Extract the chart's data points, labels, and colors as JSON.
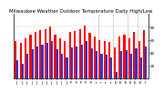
{
  "title": "Milwaukee Weather Outdoor Temperature Daily High/Low",
  "highs": [
    58,
    55,
    62,
    68,
    72,
    75,
    76,
    80,
    68,
    62,
    58,
    72,
    74,
    76,
    82,
    70,
    65,
    60,
    58,
    56,
    48,
    65,
    68,
    62,
    72,
    58,
    75
  ],
  "lows": [
    28,
    22,
    38,
    45,
    50,
    52,
    55,
    58,
    45,
    38,
    32,
    48,
    50,
    52,
    58,
    46,
    42,
    38,
    36,
    32,
    10,
    42,
    44,
    38,
    46,
    32,
    50
  ],
  "labels": [
    "J",
    "J",
    "J",
    "J",
    "J",
    "J",
    "J",
    "J",
    "J",
    "J",
    "J",
    "F",
    "F",
    "F",
    "F",
    "F",
    "r",
    "r",
    "r",
    "r",
    "E",
    "E",
    "E",
    "E",
    "E",
    "E",
    "l"
  ],
  "high_color": "#ff0000",
  "low_color": "#3333cc",
  "bg_color": "#ffffff",
  "plot_bg": "#ffffff",
  "ylim_min": 0,
  "ylim_max": 100,
  "ytick_vals": [
    20,
    40,
    60,
    80
  ],
  "ytick_labels": [
    "20",
    "40",
    "60",
    "80"
  ],
  "bar_width": 0.4,
  "dotted_lines": [
    16.5,
    19.5,
    22.5,
    24.5
  ],
  "title_fontsize": 4.0,
  "tick_fontsize": 3.0,
  "title_color": "#000000"
}
